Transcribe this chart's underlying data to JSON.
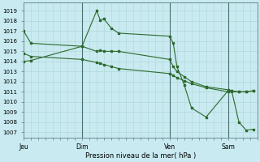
{
  "xlabel": "Pression niveau de la mer( hPa )",
  "bg_color": "#c8eaf0",
  "grid_color": "#b0d8d8",
  "line_color": "#2d6a2d",
  "marker_color": "#2d6a2d",
  "ylim": [
    1006.5,
    1019.8
  ],
  "yticks": [
    1007,
    1008,
    1009,
    1010,
    1011,
    1012,
    1013,
    1014,
    1015,
    1016,
    1017,
    1018,
    1019
  ],
  "xtick_labels": [
    "Jeu",
    "Dim",
    "Ven",
    "Sam"
  ],
  "xtick_positions": [
    0,
    8,
    20,
    28
  ],
  "series1_x": [
    0,
    1,
    8,
    10,
    10.5,
    11,
    12,
    13,
    20,
    20.5,
    21,
    22,
    23,
    25,
    28,
    28.5,
    29.5,
    30.5,
    31.5
  ],
  "series1_y": [
    1017.0,
    1015.8,
    1015.5,
    1019.0,
    1018.1,
    1018.2,
    1017.3,
    1016.8,
    1016.5,
    1015.8,
    1013.5,
    1011.7,
    1009.4,
    1008.5,
    1011.1,
    1011.1,
    1008.0,
    1007.2,
    1007.3
  ],
  "series2_x": [
    0,
    1,
    8,
    10,
    10.5,
    11,
    12,
    13,
    20,
    20.5,
    21,
    22,
    23,
    25,
    28,
    28.5,
    29.5,
    30.5,
    31.5
  ],
  "series2_y": [
    1014.8,
    1014.5,
    1014.2,
    1013.9,
    1013.8,
    1013.7,
    1013.5,
    1013.3,
    1012.8,
    1012.6,
    1012.4,
    1012.1,
    1011.8,
    1011.4,
    1011.0,
    1011.0,
    1011.0,
    1011.0,
    1011.1
  ],
  "series3_x": [
    0,
    1,
    8,
    10,
    10.5,
    11,
    12,
    13,
    20,
    20.5,
    21,
    22,
    23,
    25,
    28,
    28.5,
    29.5,
    30.5,
    31.5
  ],
  "series3_y": [
    1014.0,
    1014.1,
    1015.5,
    1015.0,
    1015.1,
    1015.0,
    1015.0,
    1015.0,
    1014.2,
    1013.5,
    1013.0,
    1012.5,
    1012.0,
    1011.5,
    1011.2,
    1011.1,
    1011.0,
    1011.0,
    1011.1
  ],
  "vline_positions": [
    8,
    20,
    28
  ],
  "xmax": 32
}
